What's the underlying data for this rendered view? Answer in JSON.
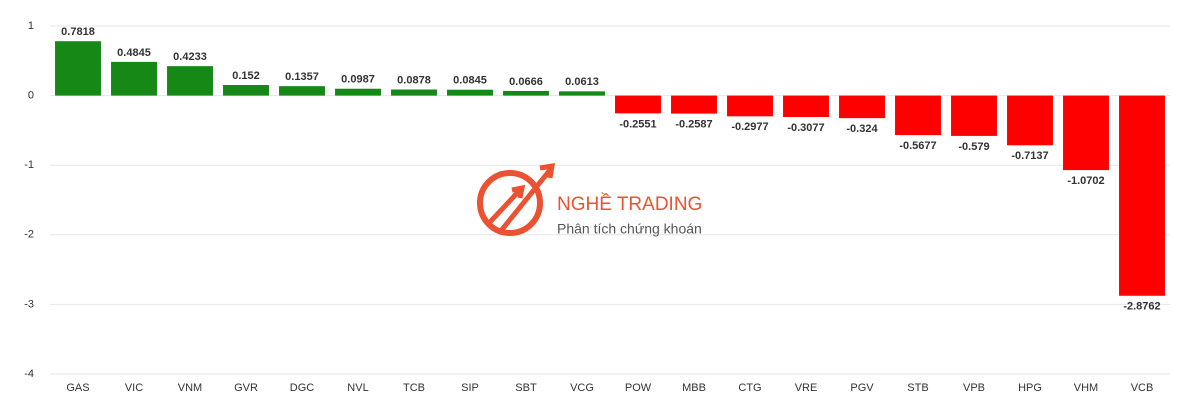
{
  "chart_data": {
    "type": "bar",
    "categories": [
      "GAS",
      "VIC",
      "VNM",
      "GVR",
      "DGC",
      "NVL",
      "TCB",
      "SIP",
      "SBT",
      "VCG",
      "POW",
      "MBB",
      "CTG",
      "VRE",
      "PGV",
      "STB",
      "VPB",
      "HPG",
      "VHM",
      "VCB"
    ],
    "values": [
      0.7818,
      0.4845,
      0.4233,
      0.152,
      0.1357,
      0.0987,
      0.0878,
      0.0845,
      0.0666,
      0.0613,
      -0.2551,
      -0.2587,
      -0.2977,
      -0.3077,
      -0.324,
      -0.5677,
      -0.579,
      -0.7137,
      -1.0702,
      -2.8762
    ],
    "colors": {
      "positive": "#168816",
      "negative": "#ff0000"
    },
    "ylim": [
      -4,
      1
    ],
    "yticks": [
      -4,
      -3,
      -2,
      -1,
      0,
      1
    ],
    "grid": true,
    "annotations": [
      "NGHỀ TRADING",
      "Phân tích chứng khoán"
    ]
  }
}
